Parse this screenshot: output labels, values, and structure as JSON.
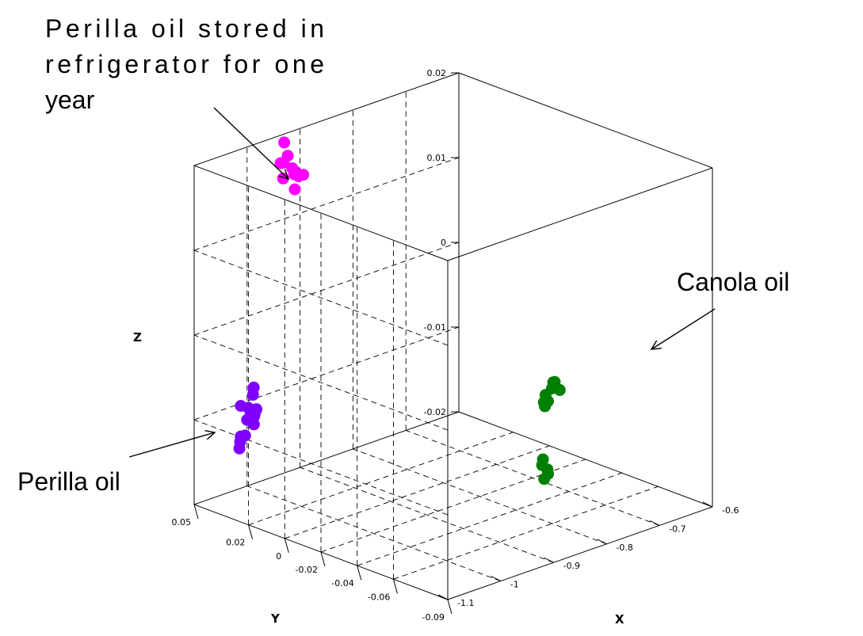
{
  "chart_data": {
    "type": "scatter",
    "dimensions": 3,
    "title": "",
    "xlabel": "X",
    "ylabel": "Y",
    "zlabel": "Z",
    "xlim": [
      -1.1,
      -0.6
    ],
    "ylim": [
      -0.09,
      0.05
    ],
    "zlim": [
      -0.02,
      0.02
    ],
    "x_ticks": [
      "-1.1",
      "-1",
      "-0.9",
      "-0.8",
      "-0.7",
      "-0.6"
    ],
    "y_ticks": [
      "0.05",
      "0.02",
      "0",
      "-0.02",
      "-0.04",
      "-0.06",
      "-0.09"
    ],
    "z_ticks": [
      "0.02",
      "0.01",
      "0",
      "-0.01",
      "-0.02"
    ],
    "grid": true,
    "box": true,
    "series": [
      {
        "color": "#ff00ff",
        "points": [
          [
            -0.93,
            0.05,
            0.019
          ],
          [
            -0.93,
            0.048,
            0.0176
          ],
          [
            -0.935,
            0.049,
            0.0168
          ],
          [
            -0.925,
            0.047,
            0.0161
          ],
          [
            -0.93,
            0.052,
            0.0164
          ],
          [
            -0.928,
            0.045,
            0.0156
          ],
          [
            -0.932,
            0.05,
            0.0148
          ],
          [
            -0.922,
            0.047,
            0.0158
          ],
          [
            -0.927,
            0.045,
            0.0138
          ],
          [
            -0.92,
            0.045,
            0.0152
          ],
          [
            -0.918,
            0.043,
            0.0155
          ]
        ]
      },
      {
        "color": "#8000ff",
        "points": [
          [
            -1.02,
            0.048,
            -0.0142
          ],
          [
            -1.018,
            0.049,
            -0.0151
          ],
          [
            -1.014,
            0.047,
            -0.0135
          ],
          [
            -1.012,
            0.05,
            -0.0139
          ],
          [
            -1.005,
            0.052,
            -0.0106
          ],
          [
            -1.0,
            0.048,
            -0.0112
          ],
          [
            -0.998,
            0.05,
            -0.0108
          ],
          [
            -0.996,
            0.046,
            -0.0107
          ],
          [
            -1.0,
            0.05,
            -0.0122
          ],
          [
            -0.994,
            0.048,
            -0.0127
          ],
          [
            -0.99,
            0.049,
            -0.0119
          ],
          [
            -0.985,
            0.05,
            -0.0117
          ],
          [
            -0.982,
            0.052,
            -0.0098
          ],
          [
            -0.984,
            0.051,
            -0.0088
          ]
        ]
      },
      {
        "color": "#008000",
        "points": [
          [
            -0.85,
            -0.07,
            -0.0038
          ],
          [
            -0.848,
            -0.07,
            -0.0043
          ],
          [
            -0.84,
            -0.068,
            -0.0033
          ],
          [
            -0.832,
            -0.067,
            -0.0043
          ],
          [
            -0.828,
            -0.068,
            -0.0028
          ],
          [
            -0.826,
            -0.069,
            -0.002
          ],
          [
            -0.822,
            -0.067,
            -0.0023
          ],
          [
            -0.82,
            -0.07,
            -0.003
          ],
          [
            -0.845,
            -0.068,
            -0.0108
          ],
          [
            -0.843,
            -0.067,
            -0.0116
          ],
          [
            -0.842,
            -0.07,
            -0.0124
          ],
          [
            -0.846,
            -0.069,
            -0.013
          ],
          [
            -0.84,
            -0.069,
            -0.012
          ]
        ]
      }
    ],
    "annotations": [
      {
        "text_lines": [
          "Perilla  oil  stored  in",
          "refrigerator  for  one",
          "year"
        ],
        "arrow_to_series": 0
      },
      {
        "text_lines": [
          "Canola oil"
        ],
        "arrow_to_series": 2
      },
      {
        "text_lines": [
          "Perilla oil"
        ],
        "arrow_to_series": 1
      }
    ]
  }
}
